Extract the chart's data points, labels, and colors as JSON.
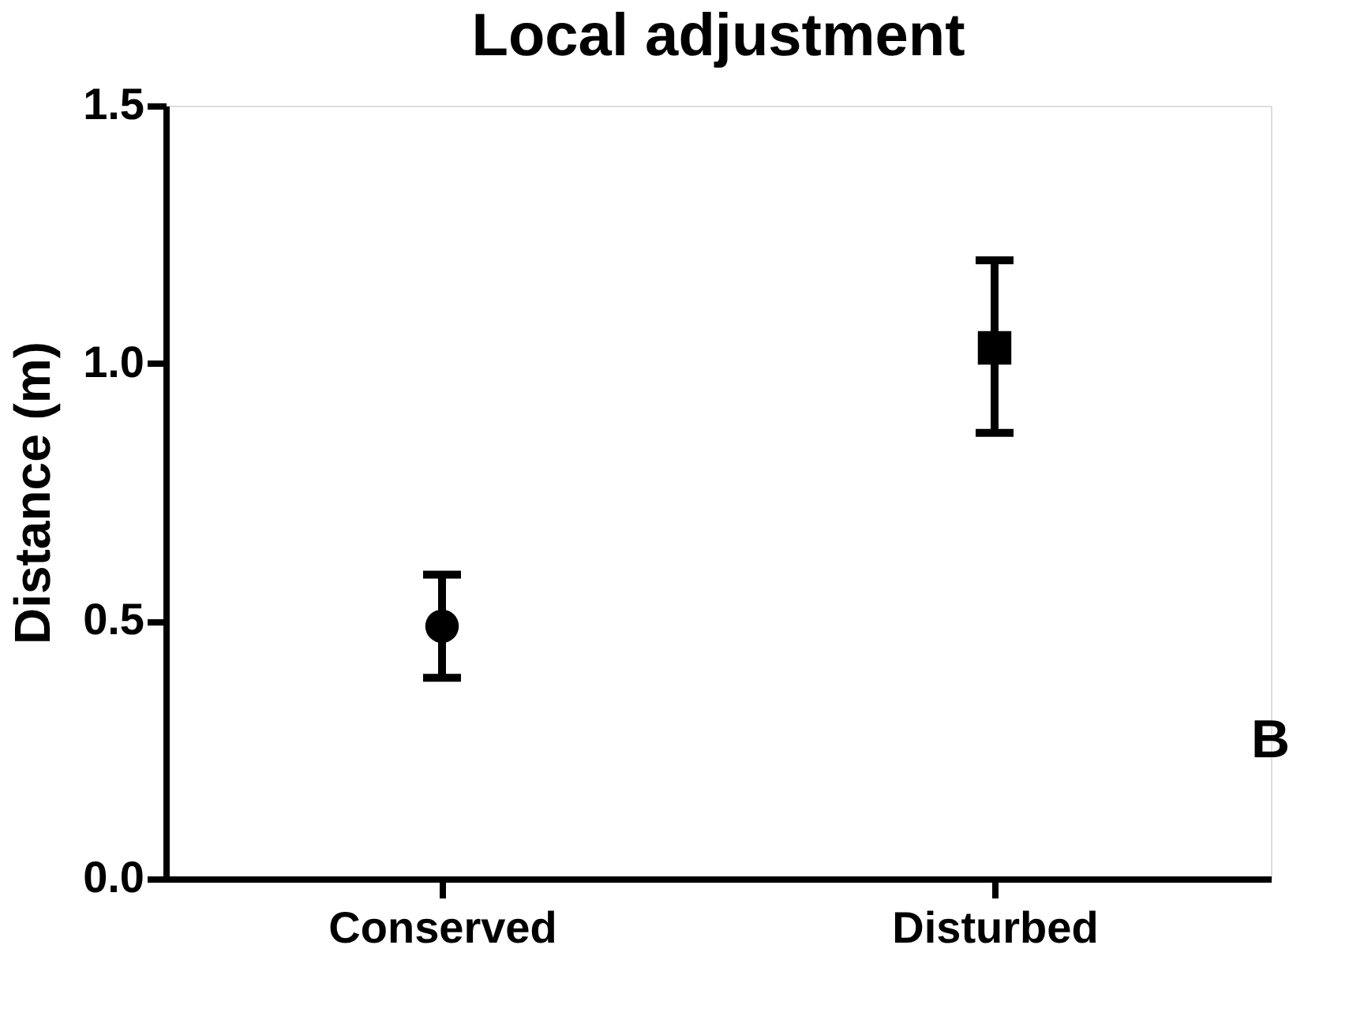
{
  "chart_data": {
    "type": "scatter",
    "title": "Local adjustment",
    "ylabel": "Distance (m)",
    "categories": [
      "Conserved",
      "Disturbed"
    ],
    "series": [
      {
        "x": [
          "Conserved"
        ],
        "values": [
          0.49
        ],
        "errors": [
          [
            0.39,
            0.59
          ]
        ],
        "marker": "circle",
        "color": "#000000"
      },
      {
        "x": [
          "Disturbed"
        ],
        "values": [
          1.03
        ],
        "errors": [
          [
            0.865,
            1.2
          ]
        ],
        "marker": "square",
        "color": "#000000"
      }
    ],
    "ylim": [
      0,
      1.5
    ],
    "yticks": [
      {
        "value": 0,
        "label": "0.0"
      },
      {
        "value": 0.5,
        "label": "0.5"
      },
      {
        "value": 1,
        "label": "1.0"
      },
      {
        "value": 1.5,
        "label": "1.5"
      }
    ],
    "grid": false,
    "annotations": [
      "B"
    ]
  }
}
